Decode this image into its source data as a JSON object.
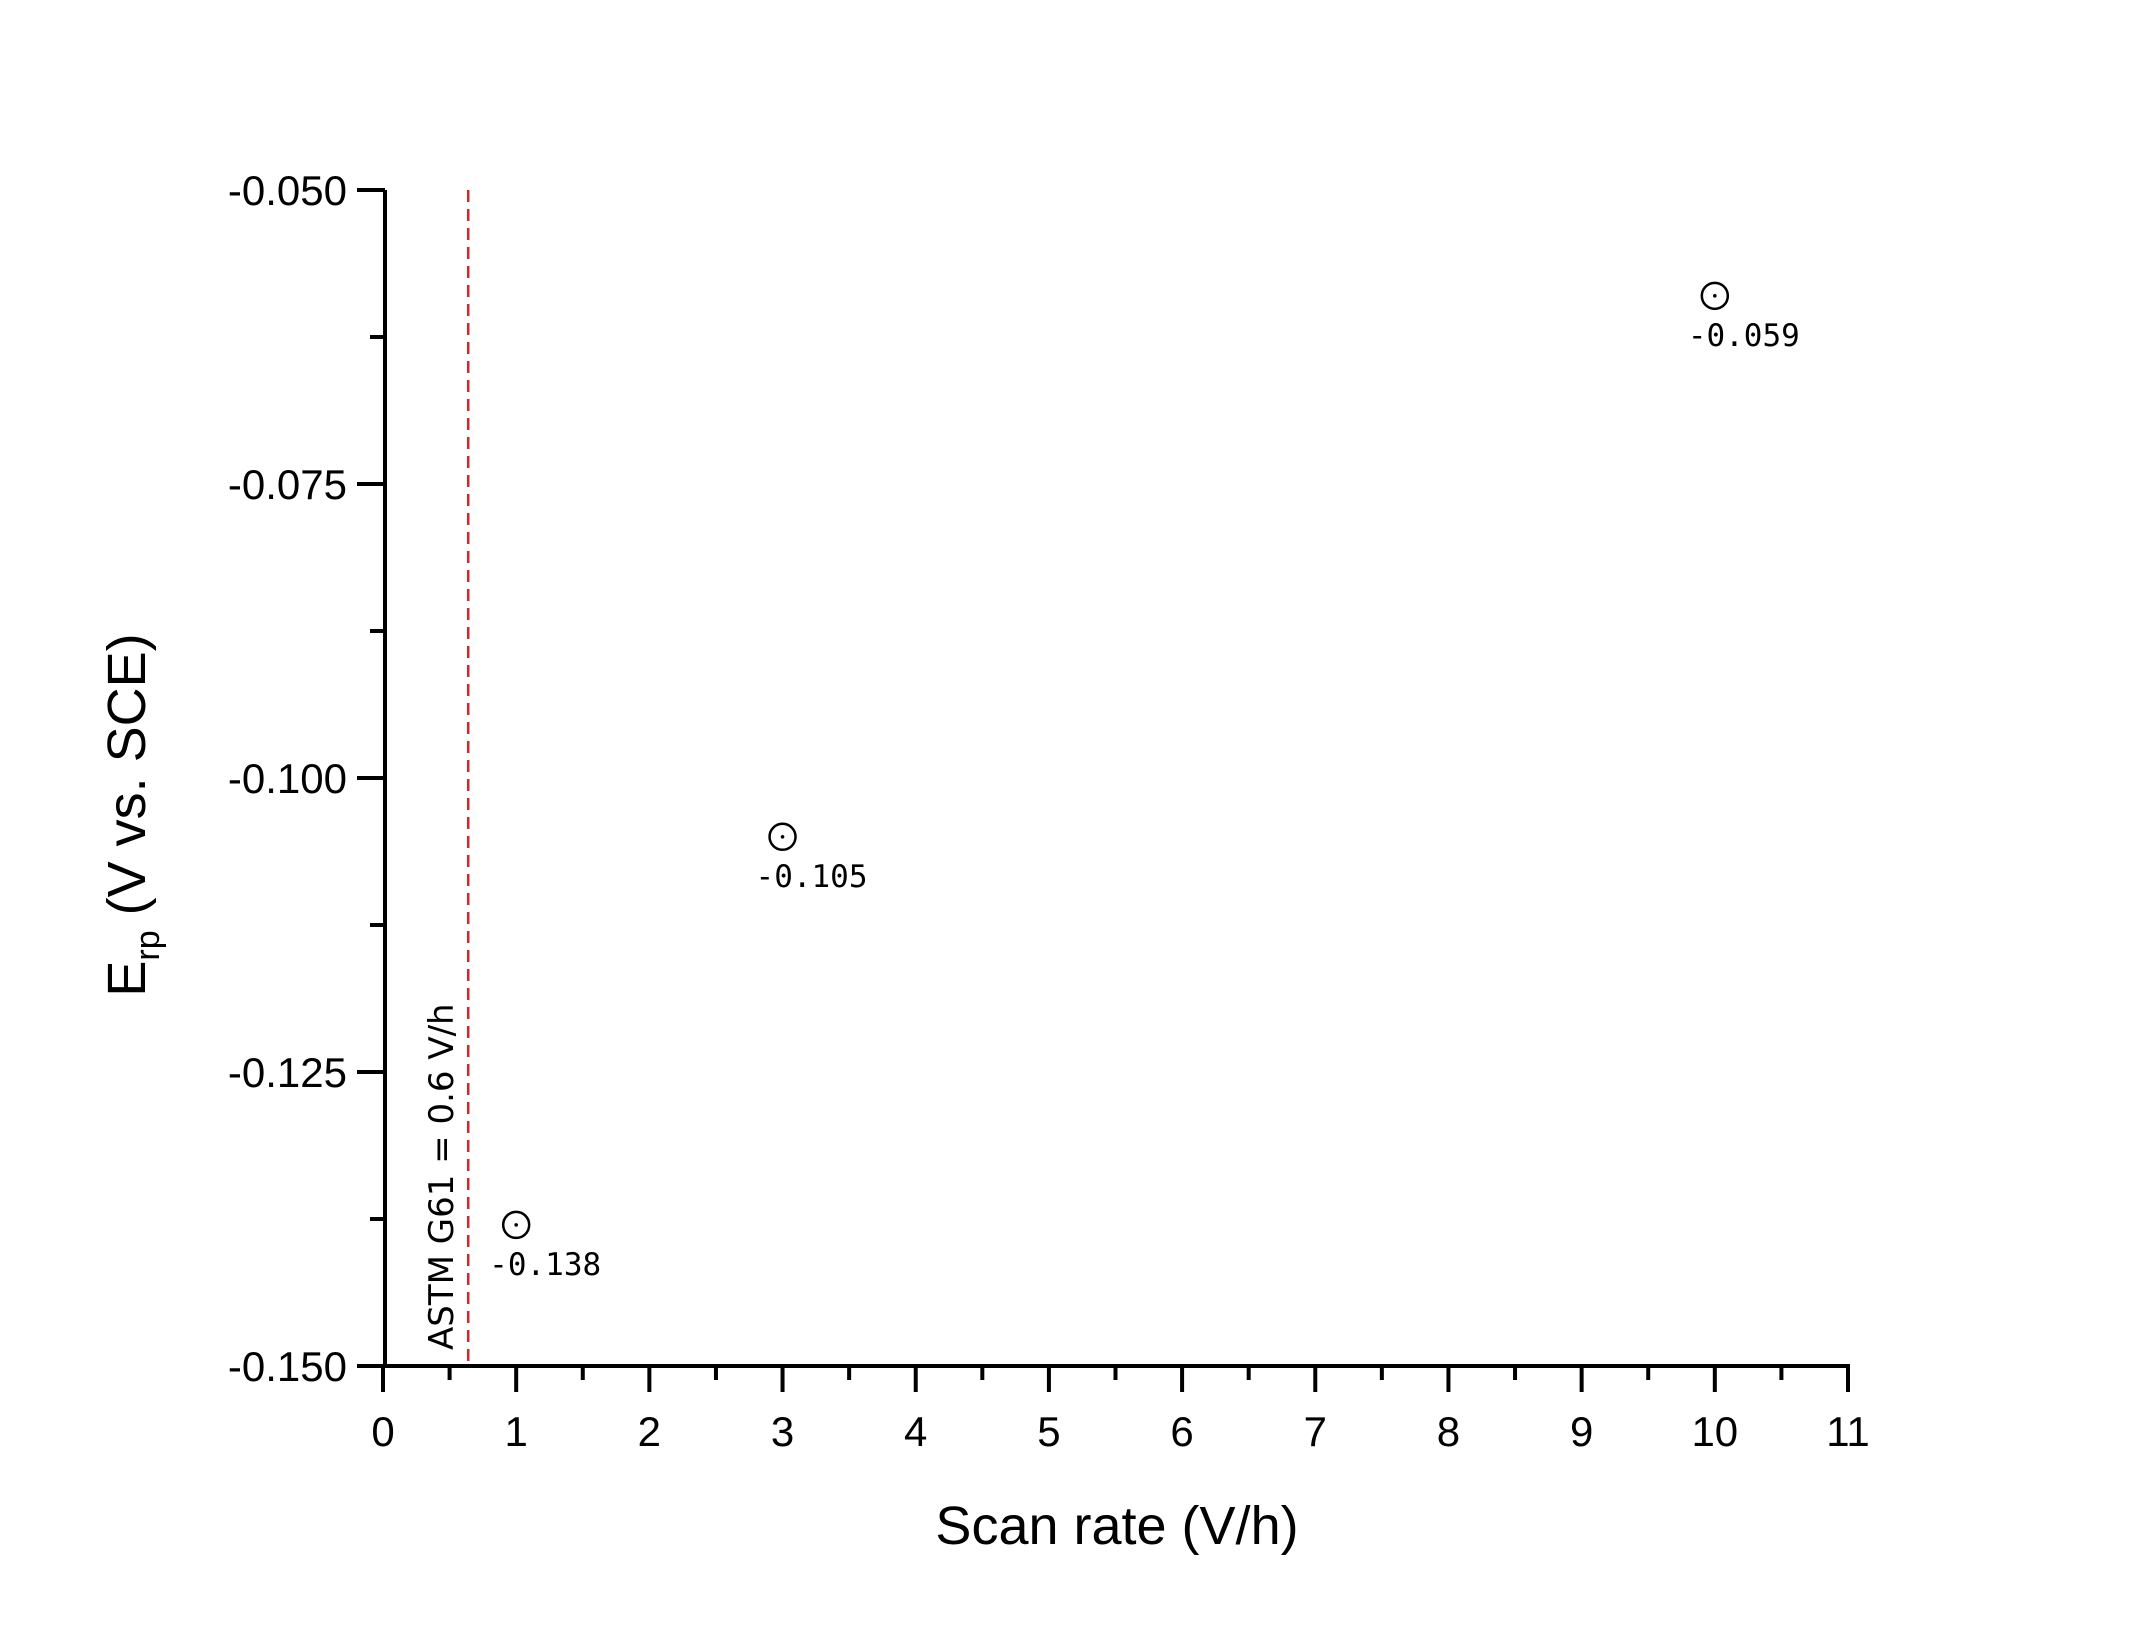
{
  "chart_data": {
    "type": "scatter",
    "title": "",
    "xlabel": "Scan rate (V/h)",
    "ylabel_main": "E",
    "ylabel_sub": "rp",
    "ylabel_rest": " (V vs. SCE)",
    "ylabel": "E_rp (V vs. SCE)",
    "xlim": [
      0,
      11
    ],
    "ylim": [
      -0.15,
      -0.05
    ],
    "x_ticks": [
      0,
      1,
      2,
      3,
      4,
      5,
      6,
      7,
      8,
      9,
      10,
      11
    ],
    "x_tick_labels": [
      "0",
      "1",
      "2",
      "3",
      "4",
      "5",
      "6",
      "7",
      "8",
      "9",
      "10",
      "11"
    ],
    "y_ticks": [
      -0.05,
      -0.075,
      -0.1,
      -0.125,
      -0.15
    ],
    "y_tick_labels": [
      "-0.050",
      "-0.075",
      "-0.100",
      "-0.125",
      "-0.150"
    ],
    "grid": false,
    "legend": null,
    "series": [
      {
        "name": "E_rp",
        "marker": "open-circle-with-dot",
        "color": "#000000",
        "points": [
          {
            "x": 1,
            "y": -0.138,
            "label": "-0.138"
          },
          {
            "x": 3,
            "y": -0.105,
            "label": "-0.105"
          },
          {
            "x": 10,
            "y": -0.059,
            "label": "-0.059"
          }
        ]
      }
    ],
    "reference_lines": [
      {
        "orientation": "vertical",
        "x": 0.64,
        "style": "dashed",
        "color": "#d62728",
        "label": "ASTM G61 = 0.6 V/h"
      }
    ]
  }
}
